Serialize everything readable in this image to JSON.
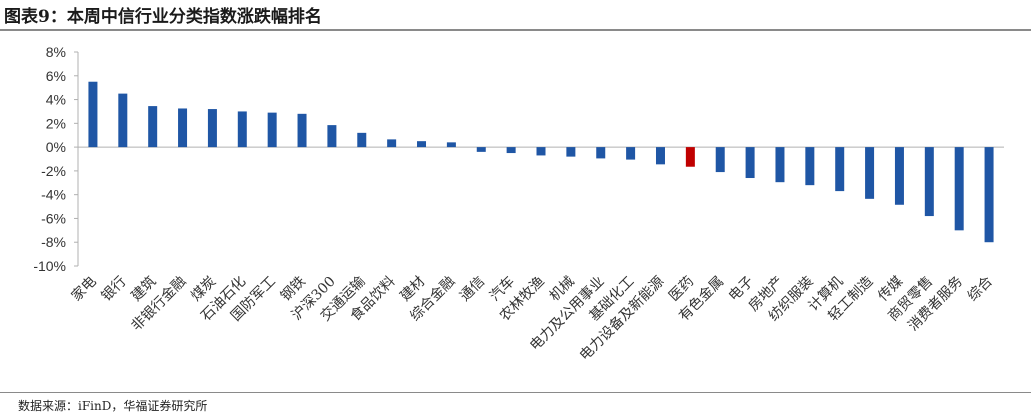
{
  "title": "图表9：本周中信行业分类指数涨跌幅排名",
  "source": "数据来源：iFinD，华福证券研究所",
  "colors": {
    "primary": "#1f56a5",
    "highlight": "#c00000",
    "axis": "#b0b0b0"
  },
  "chart_data": {
    "type": "bar",
    "title": "",
    "xlabel": "",
    "ylabel": "",
    "ylim": [
      -10,
      8
    ],
    "yticks": [
      8,
      6,
      4,
      2,
      0,
      -2,
      -4,
      -6,
      -8,
      -10
    ],
    "ytick_labels": [
      "8%",
      "6%",
      "4%",
      "2%",
      "0%",
      "-2%",
      "-4%",
      "-6%",
      "-8%",
      "-10%"
    ],
    "grid": false,
    "legend": "none",
    "highlight_category": "医药",
    "categories": [
      "家电",
      "银行",
      "建筑",
      "非银行金融",
      "煤炭",
      "石油石化",
      "国防军工",
      "钢铁",
      "沪深300",
      "交通运输",
      "食品饮料",
      "建材",
      "综合金融",
      "通信",
      "汽车",
      "农林牧渔",
      "机械",
      "电力及公用事业",
      "基础化工",
      "电力设备及新能源",
      "医药",
      "有色金属",
      "电子",
      "房地产",
      "纺织服装",
      "计算机",
      "轻工制造",
      "传媒",
      "商贸零售",
      "消费者服务",
      "综合"
    ],
    "values": [
      5.5,
      4.5,
      3.45,
      3.25,
      3.2,
      3.0,
      2.9,
      2.8,
      1.85,
      1.2,
      0.65,
      0.5,
      0.4,
      -0.4,
      -0.5,
      -0.7,
      -0.8,
      -0.95,
      -1.05,
      -1.45,
      -1.65,
      -2.1,
      -2.6,
      -2.95,
      -3.2,
      -3.7,
      -4.35,
      -4.85,
      -5.8,
      -7.0,
      -8.0
    ]
  }
}
